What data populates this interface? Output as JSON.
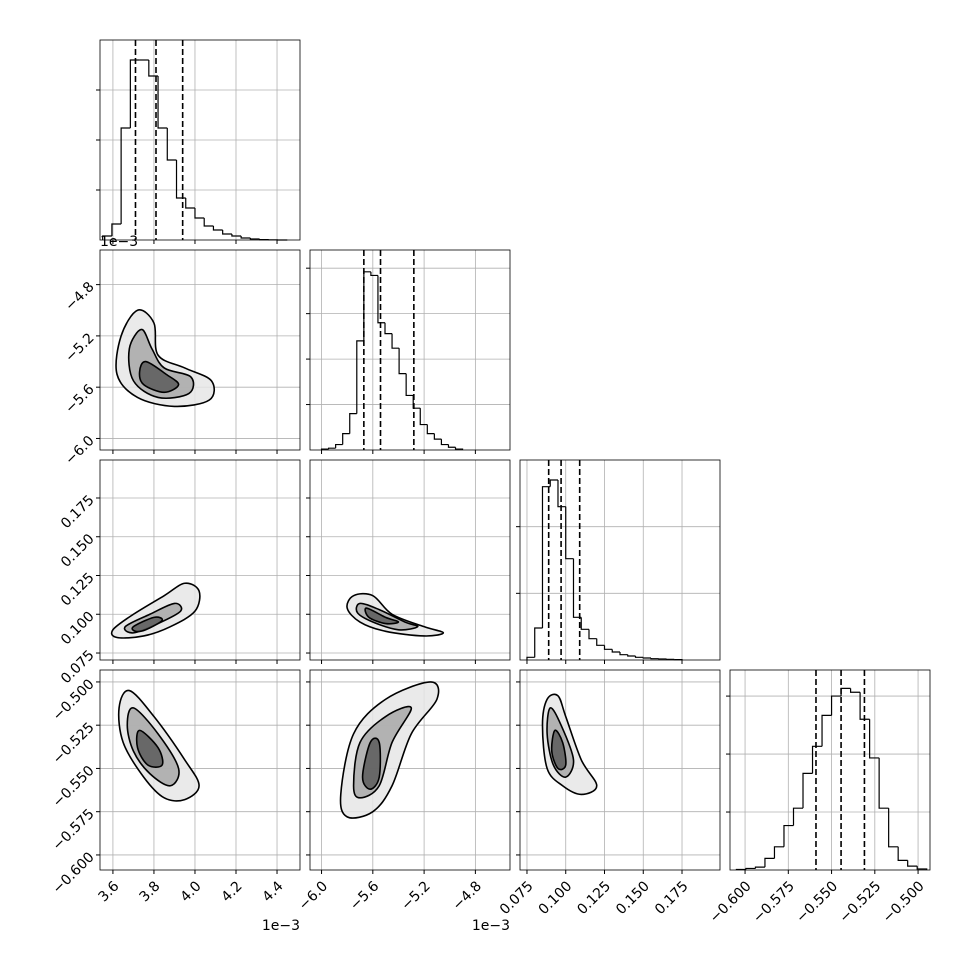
{
  "chart_data": {
    "type": "corner",
    "grid": true,
    "params": [
      {
        "lim": [
          3.537,
          4.512
        ],
        "ticks": [
          3.6,
          3.8,
          {
            "value": 4.0,
            "label": "4.0"
          },
          4.2,
          4.4
        ],
        "offset_label": "1e−3",
        "bins": [
          3.55,
          3.595,
          3.64,
          3.685,
          3.73,
          3.775,
          3.82,
          3.865,
          3.91,
          3.955,
          4.0,
          4.045,
          4.09,
          4.135,
          4.18,
          4.225,
          4.27,
          4.315,
          4.36,
          4.405,
          4.45
        ],
        "counts": [
          20,
          80,
          560,
          900,
          900,
          820,
          560,
          400,
          210,
          160,
          110,
          70,
          50,
          30,
          20,
          10,
          5,
          2,
          1,
          0
        ],
        "hist_ylim": [
          0,
          1000
        ],
        "hist_yticks": [
          250,
          500,
          750
        ],
        "quantiles": [
          3.71,
          3.81,
          3.94
        ]
      },
      {
        "lim": [
          -6.09,
          -4.53
        ],
        "ticks": [
          {
            "value": -6.0,
            "label": "−6.0"
          },
          {
            "value": -5.6,
            "label": "−5.6"
          },
          {
            "value": -5.2,
            "label": "−5.2"
          },
          {
            "value": -4.8,
            "label": "−4.8"
          }
        ],
        "offset_label": "1e−3",
        "bins": [
          -6.0,
          -5.945,
          -5.89,
          -5.835,
          -5.78,
          -5.725,
          -5.67,
          -5.615,
          -5.56,
          -5.505,
          -5.45,
          -5.395,
          -5.34,
          -5.285,
          -5.23,
          -5.175,
          -5.12,
          -5.065,
          -5.01,
          -4.955,
          -4.9
        ],
        "counts": [
          5,
          10,
          30,
          90,
          200,
          600,
          980,
          960,
          700,
          640,
          560,
          420,
          300,
          230,
          140,
          90,
          60,
          30,
          15,
          5
        ],
        "hist_ylim": [
          0,
          1100
        ],
        "hist_yticks": [
          250,
          500,
          750,
          1000
        ],
        "quantiles": [
          -5.67,
          -5.54,
          -5.28
        ]
      },
      {
        "lim": [
          0.0705,
          0.1995
        ],
        "ticks": [
          0.075,
          {
            "value": 0.1,
            "label": "0.100"
          },
          0.125,
          {
            "value": 0.15,
            "label": "0.150"
          },
          0.175
        ],
        "bins": [
          0.075,
          0.08,
          0.085,
          0.09,
          0.095,
          0.1,
          0.105,
          0.11,
          0.115,
          0.12,
          0.125,
          0.13,
          0.135,
          0.14,
          0.145,
          0.15,
          0.155,
          0.16,
          0.165,
          0.17,
          0.175
        ],
        "counts": [
          20,
          240,
          1300,
          1350,
          1150,
          760,
          320,
          230,
          160,
          110,
          80,
          60,
          40,
          30,
          20,
          15,
          10,
          8,
          5,
          3
        ],
        "hist_ylim": [
          0,
          1500
        ],
        "hist_yticks": [
          500,
          1000
        ],
        "quantiles": [
          0.089,
          0.097,
          0.109
        ]
      },
      {
        "lim": [
          -0.6087,
          -0.4931
        ],
        "ticks": [
          {
            "value": -0.6,
            "label": "−0.600"
          },
          {
            "value": -0.575,
            "label": "−0.575"
          },
          {
            "value": -0.55,
            "label": "−0.550"
          },
          {
            "value": -0.525,
            "label": "−0.525"
          },
          {
            "value": -0.5,
            "label": "−0.500"
          }
        ],
        "bins": [
          -0.605,
          -0.5995,
          -0.594,
          -0.5885,
          -0.583,
          -0.5775,
          -0.572,
          -0.5665,
          -0.561,
          -0.5555,
          -0.55,
          -0.5445,
          -0.539,
          -0.5335,
          -0.528,
          -0.5225,
          -0.517,
          -0.5115,
          -0.506,
          -0.5005,
          -0.495
        ],
        "counts": [
          3,
          8,
          15,
          60,
          120,
          230,
          320,
          500,
          640,
          800,
          900,
          940,
          920,
          780,
          580,
          320,
          120,
          50,
          20,
          5
        ],
        "hist_ylim": [
          0,
          1035
        ],
        "hist_yticks": [
          300,
          600,
          900
        ],
        "quantiles": [
          -0.559,
          -0.5445,
          -0.531
        ]
      }
    ],
    "pairs": [
      {
        "x": 0,
        "y": 1,
        "contours": [
          {
            "x": [
              3.72,
              3.8,
              3.82,
              3.95,
              4.08,
              4.07,
              3.9,
              3.72,
              3.62,
              3.64
            ],
            "y": [
              -5.0,
              -5.1,
              -5.35,
              -5.45,
              -5.55,
              -5.7,
              -5.75,
              -5.68,
              -5.5,
              -5.2
            ]
          },
          {
            "x": [
              3.74,
              3.79,
              3.85,
              3.98,
              3.97,
              3.82,
              3.7,
              3.68
            ],
            "y": [
              -5.15,
              -5.3,
              -5.45,
              -5.52,
              -5.65,
              -5.68,
              -5.55,
              -5.3
            ]
          },
          {
            "x": [
              3.76,
              3.86,
              3.92,
              3.85,
              3.75,
              3.73
            ],
            "y": [
              -5.4,
              -5.5,
              -5.58,
              -5.64,
              -5.58,
              -5.48
            ]
          }
        ]
      },
      {
        "x": 0,
        "y": 2,
        "contours": [
          {
            "x": [
              3.6,
              3.7,
              3.85,
              3.95,
              4.02,
              4.0,
              3.88,
              3.75,
              3.62
            ],
            "y": [
              0.09,
              0.1,
              0.112,
              0.12,
              0.115,
              0.102,
              0.092,
              0.086,
              0.085
            ]
          },
          {
            "x": [
              3.66,
              3.78,
              3.9,
              3.93,
              3.82,
              3.7
            ],
            "y": [
              0.092,
              0.1,
              0.107,
              0.102,
              0.094,
              0.088
            ]
          },
          {
            "x": [
              3.7,
              3.8,
              3.84,
              3.76,
              3.71
            ],
            "y": [
              0.092,
              0.098,
              0.096,
              0.09,
              0.089
            ]
          }
        ]
      },
      {
        "x": 1,
        "y": 2,
        "contours": [
          {
            "x": [
              -5.75,
              -5.6,
              -5.45,
              -5.2,
              -5.05,
              -5.2,
              -5.5,
              -5.7,
              -5.8
            ],
            "y": [
              0.112,
              0.112,
              0.1,
              0.092,
              0.088,
              0.086,
              0.089,
              0.095,
              0.104
            ]
          },
          {
            "x": [
              -5.7,
              -5.55,
              -5.35,
              -5.25,
              -5.4,
              -5.6,
              -5.72
            ],
            "y": [
              0.107,
              0.103,
              0.095,
              0.092,
              0.09,
              0.095,
              0.101
            ]
          },
          {
            "x": [
              -5.65,
              -5.5,
              -5.4,
              -5.5,
              -5.63
            ],
            "y": [
              0.104,
              0.098,
              0.095,
              0.094,
              0.098
            ]
          }
        ]
      },
      {
        "x": 0,
        "y": 3,
        "contours": [
          {
            "x": [
              3.68,
              3.8,
              3.95,
              4.02,
              3.95,
              3.85,
              3.75,
              3.65,
              3.63
            ],
            "y": [
              -0.505,
              -0.52,
              -0.545,
              -0.56,
              -0.568,
              -0.567,
              -0.555,
              -0.535,
              -0.515
            ]
          },
          {
            "x": [
              3.7,
              3.82,
              3.92,
              3.88,
              3.78,
              3.7,
              3.67
            ],
            "y": [
              -0.515,
              -0.53,
              -0.55,
              -0.56,
              -0.553,
              -0.54,
              -0.525
            ]
          },
          {
            "x": [
              3.73,
              3.82,
              3.84,
              3.77,
              3.72
            ],
            "y": [
              -0.528,
              -0.538,
              -0.548,
              -0.548,
              -0.538
            ]
          }
        ]
      },
      {
        "x": 1,
        "y": 3,
        "contours": [
          {
            "x": [
              -5.85,
              -5.75,
              -5.5,
              -5.15,
              -5.1,
              -5.3,
              -5.45,
              -5.6,
              -5.8
            ],
            "y": [
              -0.565,
              -0.53,
              -0.51,
              -0.5,
              -0.51,
              -0.53,
              -0.56,
              -0.575,
              -0.578
            ]
          },
          {
            "x": [
              -5.75,
              -5.7,
              -5.5,
              -5.3,
              -5.45,
              -5.55,
              -5.7
            ],
            "y": [
              -0.56,
              -0.535,
              -0.52,
              -0.515,
              -0.535,
              -0.56,
              -0.567
            ]
          },
          {
            "x": [
              -5.68,
              -5.62,
              -5.55,
              -5.55,
              -5.62
            ],
            "y": [
              -0.555,
              -0.535,
              -0.535,
              -0.555,
              -0.562
            ]
          }
        ]
      },
      {
        "x": 2,
        "y": 3,
        "contours": [
          {
            "x": [
              0.088,
              0.095,
              0.1,
              0.11,
              0.12,
              0.11,
              0.098,
              0.088,
              0.085
            ],
            "y": [
              -0.51,
              -0.508,
              -0.52,
              -0.545,
              -0.56,
              -0.565,
              -0.56,
              -0.55,
              -0.525
            ]
          },
          {
            "x": [
              0.09,
              0.097,
              0.105,
              0.1,
              0.092,
              0.088
            ],
            "y": [
              -0.515,
              -0.525,
              -0.545,
              -0.555,
              -0.548,
              -0.53
            ]
          },
          {
            "x": [
              0.093,
              0.098,
              0.1,
              0.095,
              0.091
            ],
            "y": [
              -0.528,
              -0.535,
              -0.548,
              -0.55,
              -0.54
            ]
          }
        ]
      }
    ]
  }
}
